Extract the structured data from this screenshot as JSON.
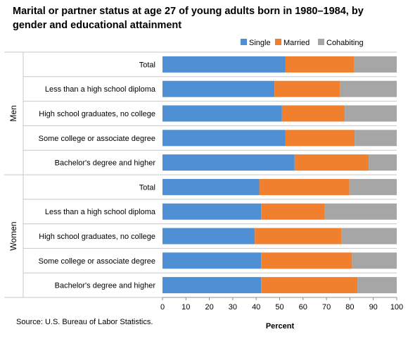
{
  "chart_data": {
    "type": "bar",
    "orientation": "horizontal",
    "stacked": true,
    "title": "Marital or partner status at age 27 of young adults born in 1980–1984, by gender and educational attainment",
    "xlabel": "Percent",
    "xlim": [
      0,
      100
    ],
    "xticks": [
      "0",
      "10",
      "20",
      "30",
      "40",
      "50",
      "60",
      "70",
      "80",
      "90",
      "100"
    ],
    "legend_position": "top-right",
    "groups": [
      {
        "name": "Men",
        "categories": [
          "Total",
          "Less than a high school diploma",
          "High school graduates, no college",
          "Some college or associate degree",
          "Bachelor's degree and higher"
        ],
        "series": [
          {
            "name": "Single",
            "color": "#4f8fd4",
            "values": [
              52.4,
              47.8,
              51.0,
              52.4,
              56.4
            ]
          },
          {
            "name": "Married",
            "color": "#f07f2e",
            "values": [
              29.4,
              27.9,
              26.8,
              29.6,
              31.6
            ]
          },
          {
            "name": "Cohabiting",
            "color": "#a6a6a6",
            "values": [
              18.2,
              24.3,
              22.2,
              18.0,
              12.0
            ]
          }
        ]
      },
      {
        "name": "Women",
        "categories": [
          "Total",
          "Less than a high school diploma",
          "High school graduates, no college",
          "Some college or associate degree",
          "Bachelor's degree and higher"
        ],
        "series": [
          {
            "name": "Single",
            "color": "#4f8fd4",
            "values": [
              41.3,
              42.1,
              39.4,
              42.1,
              42.1
            ]
          },
          {
            "name": "Married",
            "color": "#f07f2e",
            "values": [
              38.5,
              27.1,
              36.9,
              38.8,
              41.1
            ]
          },
          {
            "name": "Cohabiting",
            "color": "#a6a6a6",
            "values": [
              20.2,
              30.8,
              23.7,
              19.1,
              16.8
            ]
          }
        ]
      }
    ],
    "source": "Source: U.S. Bureau of Labor Statistics."
  }
}
